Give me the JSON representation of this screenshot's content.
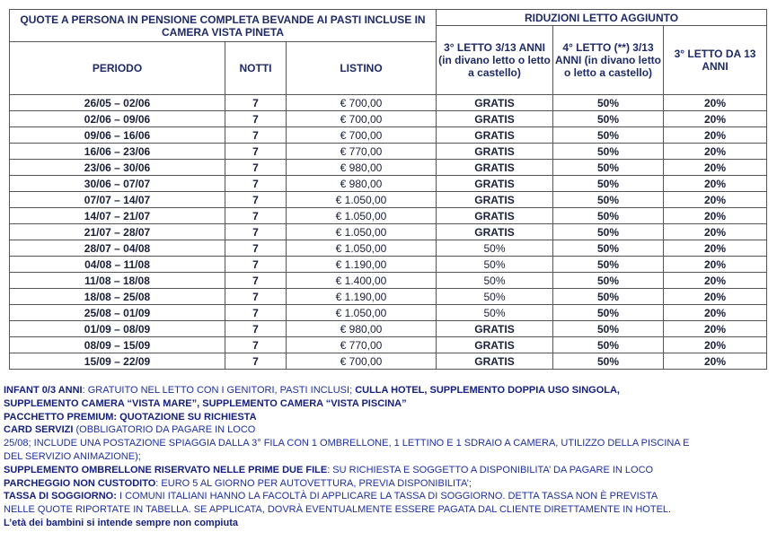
{
  "table": {
    "title": "QUOTE A PERSONA IN PENSIONE COMPLETA BEVANDE AI PASTI INCLUSE IN CAMERA VISTA PINETA",
    "reductions_title": "RIDUZIONI LETTO AGGIUNTO",
    "headers": [
      "PERIODO",
      "NOTTI",
      "LISTINO",
      "3° LETTO 3/13 ANNI (in divano letto o letto a castello)",
      "4° LETTO (**) 3/13 ANNI (in divano letto o letto a castello)",
      "3° LETTO DA 13 ANNI"
    ],
    "column_styles": [
      "bold",
      "bold",
      "regular",
      "bold",
      "bold",
      "bold"
    ],
    "regular_third_bed_rows": [
      9,
      10,
      11,
      12,
      13
    ],
    "rows": [
      [
        "26/05 – 02/06",
        "7",
        "€ 700,00",
        "GRATIS",
        "50%",
        "20%"
      ],
      [
        "02/06 – 09/06",
        "7",
        "€ 700,00",
        "GRATIS",
        "50%",
        "20%"
      ],
      [
        "09/06 – 16/06",
        "7",
        "€ 700,00",
        "GRATIS",
        "50%",
        "20%"
      ],
      [
        "16/06 – 23/06",
        "7",
        "€ 770,00",
        "GRATIS",
        "50%",
        "20%"
      ],
      [
        "23/06 – 30/06",
        "7",
        "€ 980,00",
        "GRATIS",
        "50%",
        "20%"
      ],
      [
        "30/06 – 07/07",
        "7",
        "€ 980,00",
        "GRATIS",
        "50%",
        "20%"
      ],
      [
        "07/07 – 14/07",
        "7",
        "€ 1.050,00",
        "GRATIS",
        "50%",
        "20%"
      ],
      [
        "14/07 – 21/07",
        "7",
        "€ 1.050,00",
        "GRATIS",
        "50%",
        "20%"
      ],
      [
        "21/07 – 28/07",
        "7",
        "€ 1.050,00",
        "GRATIS",
        "50%",
        "20%"
      ],
      [
        "28/07 – 04/08",
        "7",
        "€ 1.050,00",
        "50%",
        "50%",
        "20%"
      ],
      [
        "04/08 – 11/08",
        "7",
        "€ 1.190,00",
        "50%",
        "50%",
        "20%"
      ],
      [
        "11/08 – 18/08",
        "7",
        "€ 1.400,00",
        "50%",
        "50%",
        "20%"
      ],
      [
        "18/08 – 25/08",
        "7",
        "€ 1.190,00",
        "50%",
        "50%",
        "20%"
      ],
      [
        "25/08 – 01/09",
        "7",
        "€ 1.050,00",
        "50%",
        "50%",
        "20%"
      ],
      [
        "01/09 – 08/09",
        "7",
        "€ 980,00",
        "GRATIS",
        "50%",
        "20%"
      ],
      [
        "08/09 – 15/09",
        "7",
        "€ 770,00",
        "GRATIS",
        "50%",
        "20%"
      ],
      [
        "15/09 – 22/09",
        "7",
        "€ 700,00",
        "GRATIS",
        "50%",
        "20%"
      ]
    ]
  },
  "notes": [
    [
      {
        "text": "INFANT 0/3 ANNI",
        "bold": true
      },
      {
        "text": ": GRATUITO  NEL LETTO CON I GENITORI,  PASTI INCLUSI; ",
        "bold": false
      },
      {
        "text": "CULLA HOTEL,  SUPPLEMENTO DOPPIA USO SINGOLA,",
        "bold": true
      }
    ],
    [
      {
        "text": "SUPPLEMENTO CAMERA “VISTA MARE”, SUPPLEMENTO CAMERA “VISTA PISCINA”",
        "bold": true
      }
    ],
    [
      {
        "text": "PACCHETTO  PREMIUM: QUOTAZIONE  SU RICHIESTA",
        "bold": true
      }
    ],
    [
      {
        "text": "CARD SERVIZI",
        "bold": true
      },
      {
        "text": " (OBBLIGATORIO  DA PAGARE  IN LOCO",
        "bold": false
      }
    ],
    [
      {
        "text": "25/08; INCLUDE UNA POSTAZIONE  SPIAGGIA  DALLA 3° FILA CON 1 OMBRELLONE,  1 LETTINO E 1 SDRAIO A CAMERA,  UTILIZZO DELLA PISCINA E",
        "bold": false
      }
    ],
    [
      {
        "text": "DEL SERVIZIO  ANIMAZIONE);",
        "bold": false
      }
    ],
    [
      {
        "text": "SUPPLEMENTO OMBRELLONE RISERVATO NELLE PRIME DUE FILE",
        "bold": true
      },
      {
        "text": ": SU RICHIESTA  E SOGGETTO  A DISPONIBILITA’  DA PAGARE  IN LOCO",
        "bold": false
      }
    ],
    [
      {
        "text": "PARCHEGGIO NON CUSTODITO",
        "bold": true
      },
      {
        "text": ": EURO 5 AL GIORNO PER AUTOVETTURA,  PREVIA DISPONIBILITA’;",
        "bold": false
      }
    ],
    [
      {
        "text": "TASSA DI SOGGIORNO:",
        "bold": true
      },
      {
        "text": "  I COMUNI ITALIANI  HANNO LA FACOLTÀ  DI APPLICARE LA TASSA DI SOGGIORNO.  DETTA TASSA NON È PREVISTA",
        "bold": false
      }
    ],
    [
      {
        "text": "NELLE QUOTE RIPORTATE  IN TABELLA.  SE APPLICATA, DOVRÀ EVENTUALMENTE  ESSERE PAGATA DAL CLIENTE DIRETTAMENTE  IN HOTEL.",
        "bold": false
      }
    ],
    [
      {
        "text": "L’età dei bambini  si intende  sempre non compiuta",
        "bold": true
      }
    ]
  ]
}
